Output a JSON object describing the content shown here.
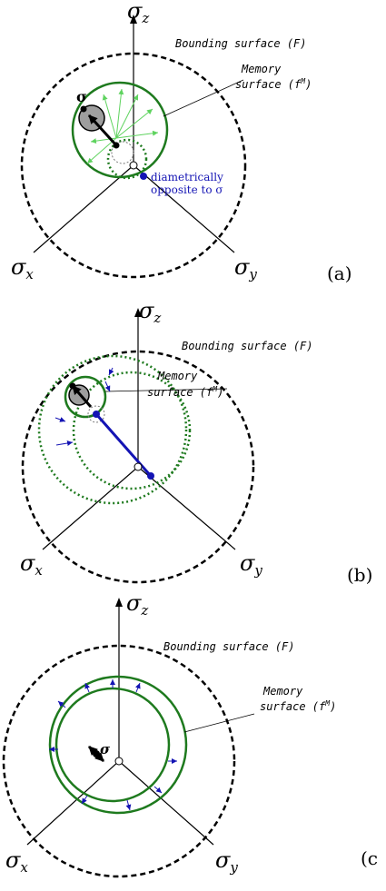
{
  "colors": {
    "axis": "#000000",
    "bounding": "#000000",
    "memory": "#1e7a1e",
    "arrow_green": "#5fd35f",
    "arrow_blue": "#1414b4",
    "stress": "#000000",
    "gray_fill": "#9e9e9e"
  },
  "axis_labels": {
    "z": "σ",
    "z_sub": "z",
    "x": "σ",
    "x_sub": "x",
    "y": "σ",
    "y_sub": "y"
  },
  "surfaces": {
    "bounding_label": "Bounding surface (F)",
    "memory_label_line1": "Memory",
    "memory_label_line2": "surface (f",
    "memory_sup": "M",
    "memory_close": ")"
  },
  "stress_symbol": "σ",
  "annotation_a": {
    "line1": "diametrically",
    "line2": "opposite to σ"
  },
  "panels": [
    {
      "label": "(a)"
    },
    {
      "label": "(b)"
    },
    {
      "label": "(c"
    }
  ]
}
